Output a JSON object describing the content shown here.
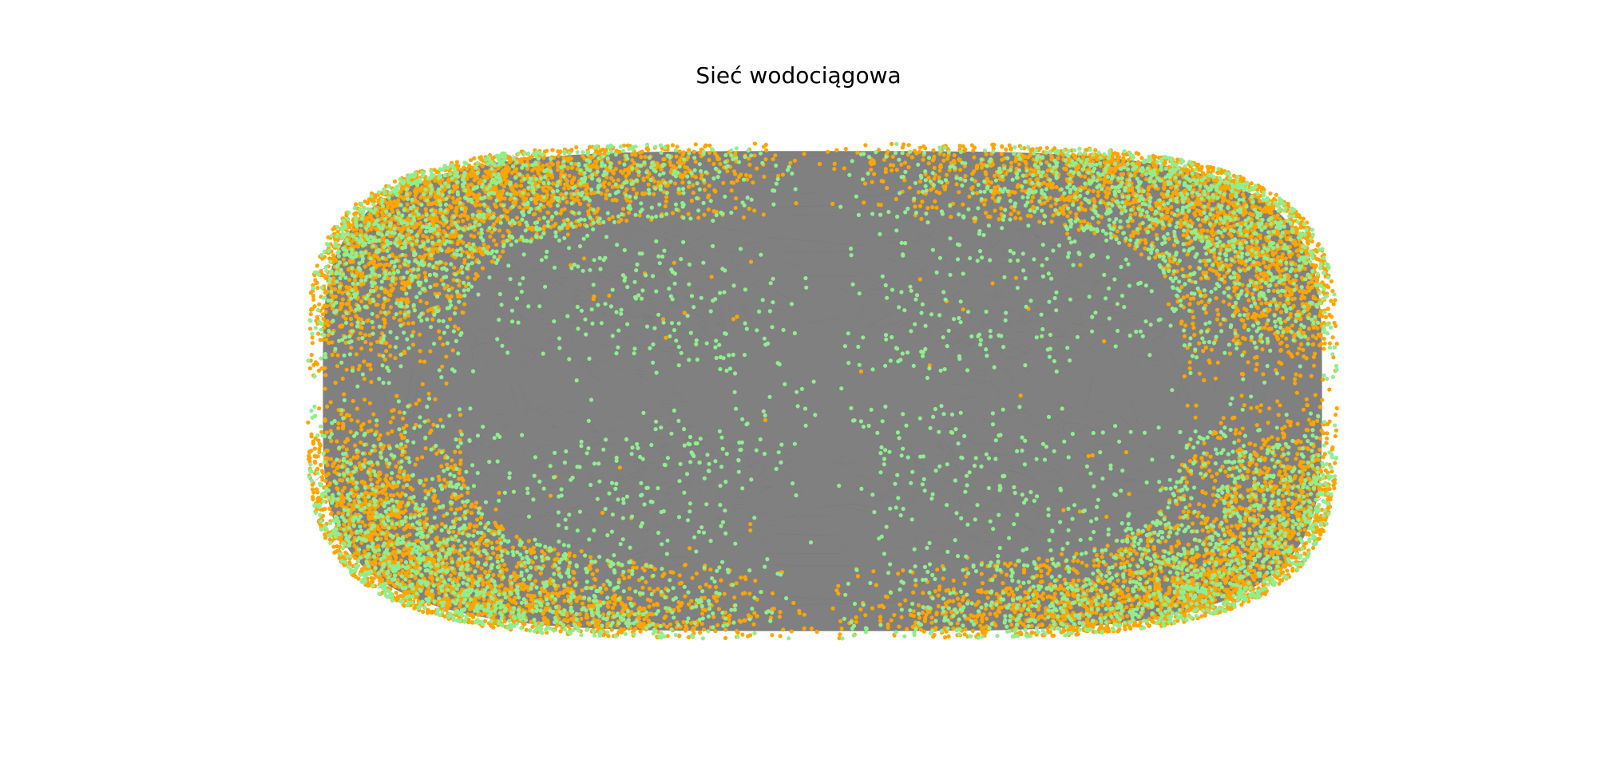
{
  "figure": {
    "title": "Sieć wodociągowa"
  },
  "network": {
    "colors": {
      "edges": "#808080",
      "node_primary": "#ffa500",
      "node_secondary": "#90ee90",
      "background": "#ffffff"
    },
    "node_categories": [
      {
        "color_name": "orange",
        "color": "#ffa500"
      },
      {
        "color_name": "lightgreen",
        "color": "#90ee90"
      }
    ]
  }
}
